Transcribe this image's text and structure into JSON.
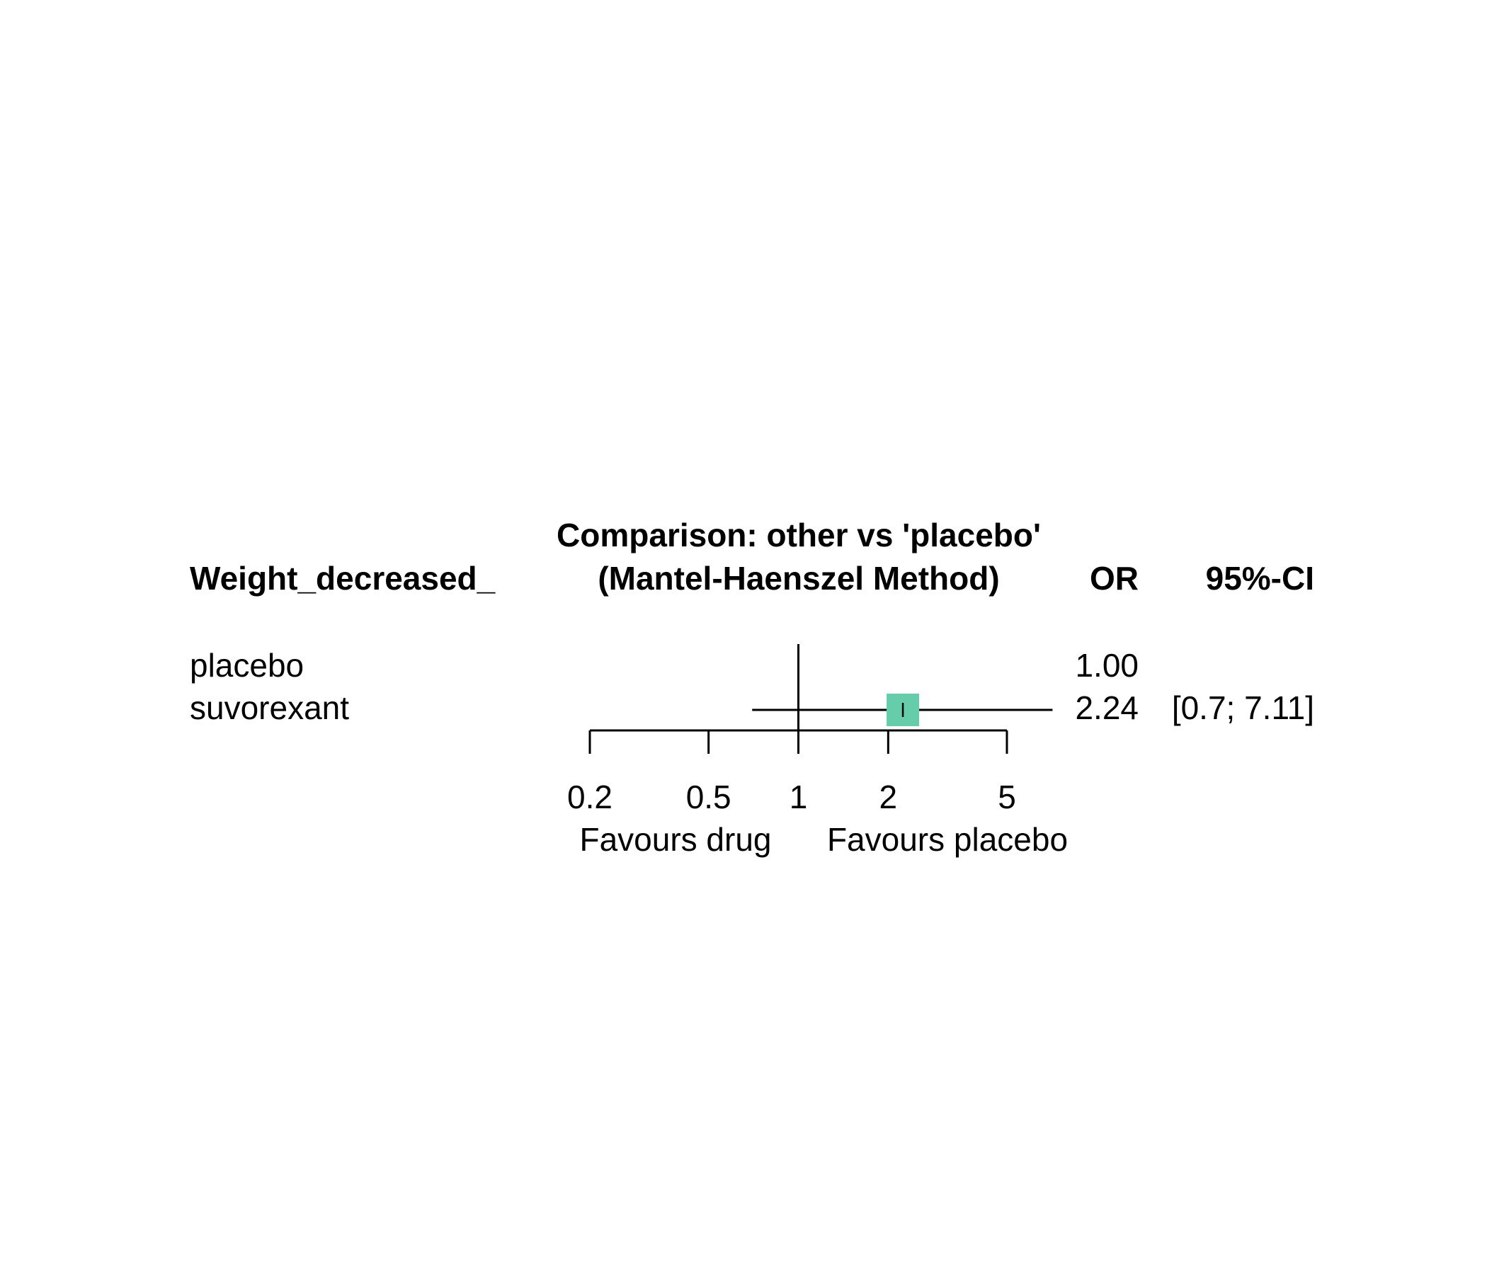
{
  "chart_data": {
    "type": "forest",
    "header": {
      "title": "Comparison: other vs 'placebo'",
      "subtitle": "(Mantel-Haenszel Method)",
      "outcome_label": "Weight_decreased_",
      "or_label": "OR",
      "ci_label": "95%-CI"
    },
    "rows": [
      {
        "label": "placebo",
        "or": 1.0,
        "lower": null,
        "upper": null,
        "or_text": "1.00",
        "ci_text": ""
      },
      {
        "label": "suvorexant",
        "or": 2.24,
        "lower": 0.7,
        "upper": 7.11,
        "or_text": "2.24",
        "ci_text": "[0.7; 7.11]"
      }
    ],
    "x_scale": "log",
    "xlim": [
      0.2,
      5
    ],
    "reference_line": 1,
    "ticks": [
      0.2,
      0.5,
      1,
      2,
      5
    ],
    "tick_labels": [
      "0.2",
      "0.5",
      "1",
      "2",
      "5"
    ],
    "xlabel_left": "Favours drug",
    "xlabel_right": "Favours placebo",
    "colors": {
      "square": "#66CDAA",
      "line": "#000000"
    }
  }
}
